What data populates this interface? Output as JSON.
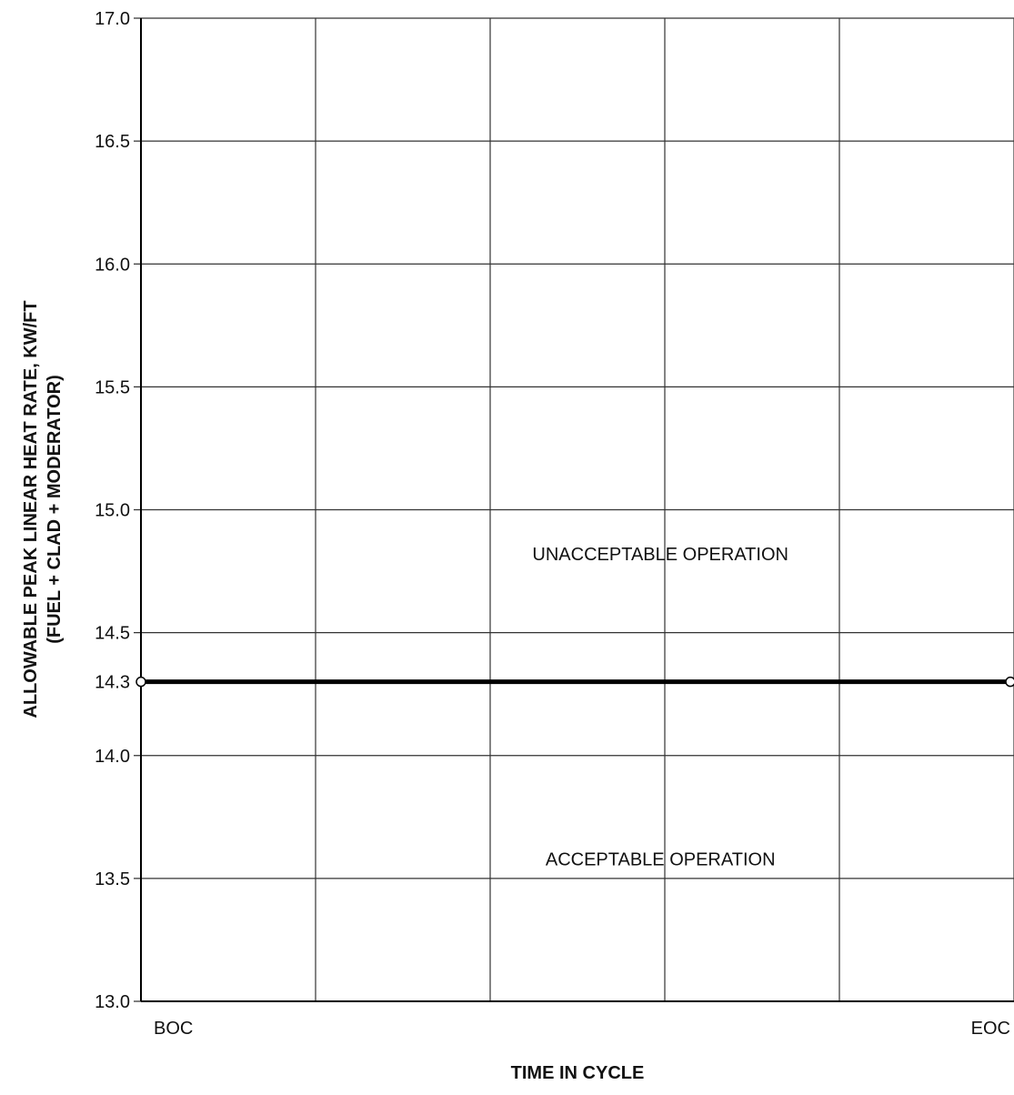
{
  "chart_data": {
    "type": "line",
    "title": "",
    "xlabel": "TIME IN CYCLE",
    "ylabel_line1": "ALLOWABLE PEAK LINEAR HEAT RATE, KW/FT",
    "ylabel_line2": "(FUEL + CLAD + MODERATOR)",
    "x_tick_labels": [
      "BOC",
      "EOC"
    ],
    "y_ticks": [
      13.0,
      13.5,
      14.0,
      14.5,
      15.0,
      15.5,
      16.0,
      16.5,
      17.0
    ],
    "y_tick_labels": [
      "13.0",
      "13.5",
      "14.0",
      "14.5",
      "15.0",
      "15.5",
      "16.0",
      "16.5",
      "17.0"
    ],
    "ylim": [
      13.0,
      17.0
    ],
    "x_gridlines": 5,
    "grid": true,
    "series": [
      {
        "x": [
          "BOC",
          "EOC"
        ],
        "values": [
          14.3,
          14.3
        ],
        "marker_label": "14.3"
      }
    ],
    "annotations": [
      {
        "text": "UNACCEPTABLE OPERATION",
        "y": 14.82
      },
      {
        "text": "ACCEPTABLE OPERATION",
        "y": 13.58
      }
    ],
    "colors": {
      "line": "#000000",
      "grid": "#333333",
      "text": "#111111"
    }
  }
}
